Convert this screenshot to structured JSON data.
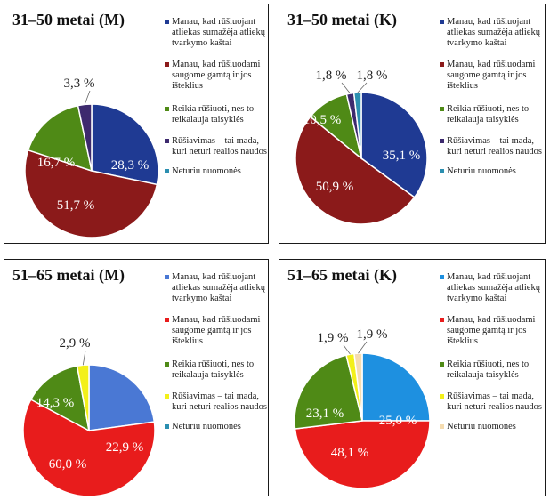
{
  "chart_data": [
    {
      "type": "pie",
      "title": "31–50 metai (M)",
      "labels": [
        "Manau, kad rūšiuojant atliekas sumažėja atliekų tvarkymo kaštai",
        "Manau, kad rūšiuodami saugome gamtą ir jos išteklius",
        "Reikia rūšiuoti, nes to reikalauja taisyklės",
        "Rūšiavimas – tai mada, kuri neturi realios naudos",
        "Neturiu nuomonės"
      ],
      "values": [
        28.3,
        51.7,
        16.7,
        3.3,
        0
      ],
      "value_labels": [
        "28,3 %",
        "51,7 %",
        "16,7 %",
        "3,3 %",
        ""
      ],
      "colors": [
        "#1f3a93",
        "#8b1a1a",
        "#4f8a16",
        "#3d2a6e",
        "#2b8fb0"
      ]
    },
    {
      "type": "pie",
      "title": "31–50 metai (K)",
      "labels": [
        "Manau, kad rūšiuojant atliekas sumažėja atliekų tvarkymo kaštai",
        "Manau, kad rūšiuodami saugome gamtą ir jos išteklius",
        "Reikia rūšiuoti, nes to reikalauja taisyklės",
        "Rūšiavimas – tai mada, kuri neturi realios naudos",
        "Neturiu nuomonės"
      ],
      "values": [
        35.1,
        50.9,
        10.5,
        1.8,
        1.8
      ],
      "value_labels": [
        "35,1 %",
        "50,9 %",
        "10,5 %",
        "1,8 %",
        "1,8 %"
      ],
      "colors": [
        "#1f3a93",
        "#8b1a1a",
        "#4f8a16",
        "#3d2a6e",
        "#2b8fb0"
      ]
    },
    {
      "type": "pie",
      "title": "51–65 metai (M)",
      "labels": [
        "Manau, kad rūšiuojant atliekas sumažėja atliekų tvarkymo kaštai",
        "Manau, kad rūšiuodami saugome gamtą ir jos išteklius",
        "Reikia rūšiuoti, nes to reikalauja taisyklės",
        "Rūšiavimas – tai mada, kuri neturi realios naudos",
        "Neturiu nuomonės"
      ],
      "values": [
        22.9,
        60.0,
        14.3,
        2.9,
        0
      ],
      "value_labels": [
        "22,9 %",
        "60,0 %",
        "14,3 %",
        "2,9 %",
        ""
      ],
      "colors": [
        "#4a78d4",
        "#e81c1c",
        "#4f8a16",
        "#f3f01a",
        "#2b8fb0"
      ]
    },
    {
      "type": "pie",
      "title": "51–65 metai (K)",
      "labels": [
        "Manau, kad rūšiuojant atliekas sumažėja atliekų tvarkymo kaštai",
        "Manau, kad rūšiuodami saugome gamtą ir jos išteklius",
        "Reikia rūšiuoti, nes to reikalauja taisyklės",
        "Rūšiavimas – tai mada, kuri neturi realios naudos",
        "Neturiu nuomonės"
      ],
      "values": [
        25.0,
        48.1,
        23.1,
        1.9,
        1.9
      ],
      "value_labels": [
        "25,0 %",
        "48,1 %",
        "23,1 %",
        "1,9 %",
        "1,9 %"
      ],
      "colors": [
        "#1e90e0",
        "#e81c1c",
        "#4f8a16",
        "#f3f01a",
        "#f5dcb0"
      ]
    }
  ]
}
